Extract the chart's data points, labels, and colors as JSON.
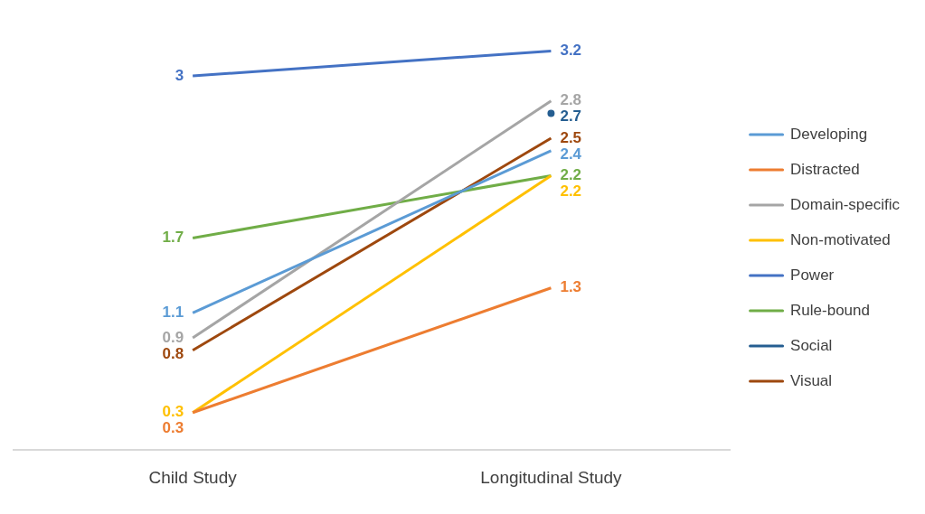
{
  "chart_data": {
    "type": "line",
    "categories": [
      "Child Study",
      "Longitudinal Study"
    ],
    "series": [
      {
        "name": "Developing",
        "color": "#5b9bd5",
        "values": [
          1.1,
          2.4
        ]
      },
      {
        "name": "Distracted",
        "color": "#ed7d31",
        "values": [
          0.3,
          1.3
        ]
      },
      {
        "name": "Domain-specific",
        "color": "#a5a5a5",
        "values": [
          0.9,
          2.8
        ]
      },
      {
        "name": "Non-motivated",
        "color": "#ffc000",
        "values": [
          0.3,
          2.2
        ]
      },
      {
        "name": "Power",
        "color": "#4472c4",
        "values": [
          3,
          3.2
        ]
      },
      {
        "name": "Rule-bound",
        "color": "#70ad47",
        "values": [
          1.7,
          2.2
        ]
      },
      {
        "name": "Social",
        "color": "#255e91",
        "values": [
          null,
          2.7
        ],
        "marker": "circle"
      },
      {
        "name": "Visual",
        "color": "#9e480e",
        "values": [
          0.8,
          2.5
        ]
      }
    ],
    "data_labels": true,
    "legend": "right",
    "marker": "none",
    "line_style": "solid",
    "grid": false
  }
}
